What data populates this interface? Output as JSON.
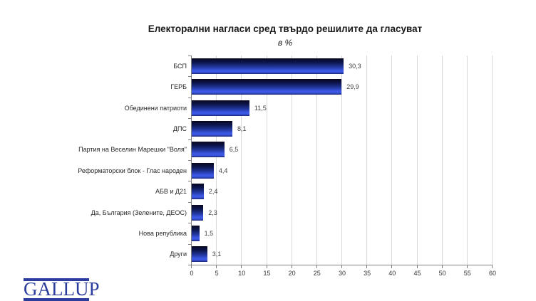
{
  "chart_data": {
    "type": "bar",
    "orientation": "horizontal",
    "title": "Електорални нагласи сред твърдо решилите да гласуват",
    "subtitle": "в %",
    "categories": [
      "БСП",
      "ГЕРБ",
      "Обединени патриоти",
      "ДПС",
      "Партия на Веселин Марешки \"Воля\"",
      "Реформаторски блок - Глас народен",
      "АБВ и Д21",
      "Да, България (Зелените, ДЕОС)",
      "Нова република",
      "Други"
    ],
    "values": [
      30.3,
      29.9,
      11.5,
      8.1,
      6.5,
      4.4,
      2.4,
      2.3,
      1.5,
      3.1
    ],
    "value_labels": [
      "30,3",
      "29,9",
      "11,5",
      "8,1",
      "6,5",
      "4,4",
      "2,4",
      "2,3",
      "1,5",
      "3,1"
    ],
    "xlabel": "",
    "ylabel": "",
    "xlim": [
      0,
      60
    ],
    "x_ticks": [
      0,
      5,
      10,
      15,
      20,
      25,
      30,
      35,
      40,
      45,
      50,
      55,
      60
    ],
    "grid": true,
    "legend": false,
    "bar_color_dark": "#07071f",
    "bar_color_bright": "#3c59e6",
    "gridline_color": "#d9d9d9",
    "axis_color": "#808080"
  },
  "logo": {
    "text": "GALLUP",
    "color": "#2c3d9d"
  }
}
